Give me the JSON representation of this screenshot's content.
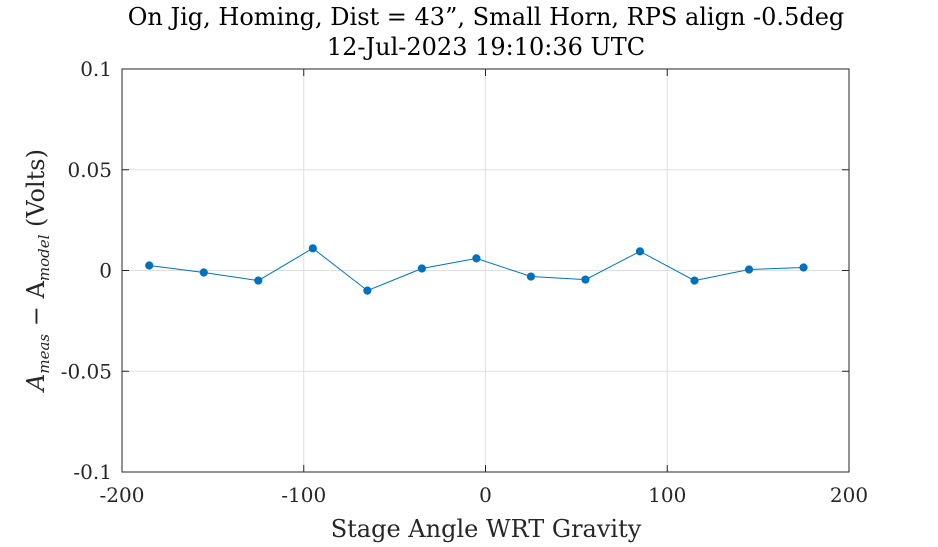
{
  "chart_data": {
    "type": "line",
    "title": "On Jig, Homing, Dist = 43”, Small Horn, RPS align -0.5deg",
    "subtitle": "12-Jul-2023 19:10:36 UTC",
    "xlabel": "Stage Angle WRT Gravity",
    "ylabel": {
      "main": "A",
      "sub1": "meas",
      "mid": " − A",
      "sub2": "model",
      "tail": " (Volts)"
    },
    "xlim": [
      -200,
      200
    ],
    "ylim": [
      -0.1,
      0.1
    ],
    "xticks": [
      -200,
      -100,
      0,
      100,
      200
    ],
    "xtick_labels": [
      "-200",
      "-100",
      "0",
      "100",
      "200"
    ],
    "yticks": [
      -0.1,
      -0.05,
      0,
      0.05,
      0.1
    ],
    "ytick_labels": [
      "-0.1",
      "-0.05",
      "0",
      "0.05",
      "0.1"
    ],
    "grid": true,
    "series": [
      {
        "color": "#0072BD",
        "x": [
          -185,
          -155,
          -125,
          -95,
          -65,
          -35,
          -5,
          25,
          55,
          85,
          115,
          145,
          175
        ],
        "y": [
          0.0025,
          -0.001,
          -0.005,
          0.011,
          -0.01,
          0.001,
          0.006,
          -0.003,
          -0.0045,
          0.0095,
          -0.005,
          0.0005,
          0.0015
        ]
      }
    ]
  }
}
